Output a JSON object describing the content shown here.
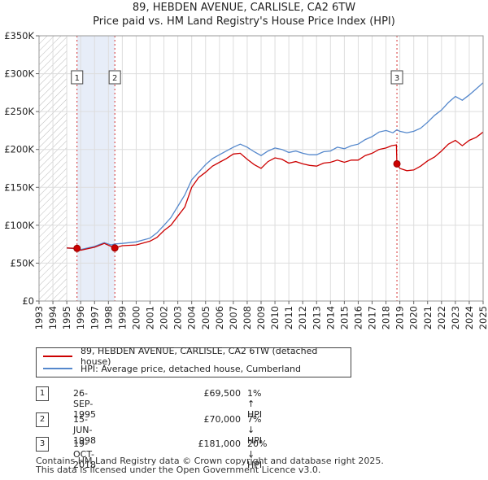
{
  "title_line1": "89, HEBDEN AVENUE, CARLISLE, CA2 6TW",
  "title_line2": "Price paid vs. HM Land Registry's House Price Index (HPI)",
  "chart_data": {
    "type": "line",
    "title": "89, HEBDEN AVENUE, CARLISLE, CA2 6TW — Price paid vs. HM Land Registry's House Price Index (HPI)",
    "xlim": [
      1993,
      2025
    ],
    "ylim": [
      0,
      350000
    ],
    "x_ticks": [
      "1993",
      "1994",
      "1995",
      "1996",
      "1997",
      "1998",
      "1999",
      "2000",
      "2001",
      "2002",
      "2003",
      "2004",
      "2005",
      "2006",
      "2007",
      "2008",
      "2009",
      "2010",
      "2011",
      "2012",
      "2013",
      "2014",
      "2015",
      "2016",
      "2017",
      "2018",
      "2019",
      "2020",
      "2021",
      "2022",
      "2023",
      "2024",
      "2025"
    ],
    "y_ticks": [
      {
        "value": 0,
        "label": "£0"
      },
      {
        "value": 50000,
        "label": "£50K"
      },
      {
        "value": 100000,
        "label": "£100K"
      },
      {
        "value": 150000,
        "label": "£150K"
      },
      {
        "value": 200000,
        "label": "£200K"
      },
      {
        "value": 250000,
        "label": "£250K"
      },
      {
        "value": 300000,
        "label": "£300K"
      },
      {
        "value": 350000,
        "label": "£350K"
      }
    ],
    "series": [
      {
        "name": "89, HEBDEN AVENUE, CARLISLE, CA2 6TW (detached house)",
        "color": "#cc0000",
        "points": [
          [
            1995.0,
            70000
          ],
          [
            1995.74,
            69500
          ],
          [
            1996.0,
            67000
          ],
          [
            1997.0,
            71000
          ],
          [
            1997.7,
            76000
          ],
          [
            1998.2,
            72000
          ],
          [
            1998.46,
            70000
          ],
          [
            1999.0,
            73000
          ],
          [
            2000.0,
            74000
          ],
          [
            2001.0,
            79000
          ],
          [
            2001.5,
            84000
          ],
          [
            2002.0,
            93000
          ],
          [
            2002.5,
            100000
          ],
          [
            2003.0,
            112000
          ],
          [
            2003.5,
            124000
          ],
          [
            2004.0,
            150000
          ],
          [
            2004.5,
            163000
          ],
          [
            2005.0,
            170000
          ],
          [
            2005.5,
            178000
          ],
          [
            2006.0,
            183000
          ],
          [
            2006.5,
            188000
          ],
          [
            2007.0,
            194000
          ],
          [
            2007.5,
            195000
          ],
          [
            2008.0,
            187000
          ],
          [
            2008.5,
            180000
          ],
          [
            2009.0,
            175000
          ],
          [
            2009.5,
            184000
          ],
          [
            2010.0,
            189000
          ],
          [
            2010.5,
            187000
          ],
          [
            2011.0,
            182000
          ],
          [
            2011.5,
            184000
          ],
          [
            2012.0,
            181000
          ],
          [
            2012.5,
            179000
          ],
          [
            2013.0,
            178000
          ],
          [
            2013.5,
            182000
          ],
          [
            2014.0,
            183000
          ],
          [
            2014.5,
            186000
          ],
          [
            2015.0,
            183000
          ],
          [
            2015.5,
            186000
          ],
          [
            2016.0,
            186000
          ],
          [
            2016.5,
            192000
          ],
          [
            2017.0,
            195000
          ],
          [
            2017.5,
            200000
          ],
          [
            2018.0,
            202000
          ],
          [
            2018.4,
            205000
          ],
          [
            2018.75,
            206000
          ],
          [
            2018.79,
            181000
          ],
          [
            2019.0,
            175000
          ],
          [
            2019.5,
            172000
          ],
          [
            2020.0,
            173000
          ],
          [
            2020.5,
            178000
          ],
          [
            2021.0,
            185000
          ],
          [
            2021.5,
            190000
          ],
          [
            2022.0,
            198000
          ],
          [
            2022.5,
            207000
          ],
          [
            2023.0,
            212000
          ],
          [
            2023.5,
            205000
          ],
          [
            2024.0,
            212000
          ],
          [
            2024.5,
            216000
          ],
          [
            2025.0,
            223000
          ]
        ]
      },
      {
        "name": "HPI: Average price, detached house, Cumberland",
        "color": "#5588cc",
        "points": [
          [
            1995.0,
            70000
          ],
          [
            1995.74,
            68800
          ],
          [
            1996.0,
            68000
          ],
          [
            1997.0,
            72000
          ],
          [
            1997.7,
            77000
          ],
          [
            1998.2,
            74000
          ],
          [
            1998.46,
            75300
          ],
          [
            1999.0,
            76000
          ],
          [
            2000.0,
            78000
          ],
          [
            2001.0,
            83000
          ],
          [
            2001.5,
            90000
          ],
          [
            2002.0,
            100000
          ],
          [
            2002.5,
            110000
          ],
          [
            2003.0,
            125000
          ],
          [
            2003.5,
            140000
          ],
          [
            2004.0,
            160000
          ],
          [
            2004.5,
            170000
          ],
          [
            2005.0,
            180000
          ],
          [
            2005.5,
            188000
          ],
          [
            2006.0,
            193000
          ],
          [
            2006.5,
            198000
          ],
          [
            2007.0,
            203000
          ],
          [
            2007.5,
            207000
          ],
          [
            2008.0,
            203000
          ],
          [
            2008.5,
            197000
          ],
          [
            2009.0,
            192000
          ],
          [
            2009.5,
            198000
          ],
          [
            2010.0,
            202000
          ],
          [
            2010.5,
            200000
          ],
          [
            2011.0,
            196000
          ],
          [
            2011.5,
            198000
          ],
          [
            2012.0,
            195000
          ],
          [
            2012.5,
            193000
          ],
          [
            2013.0,
            193000
          ],
          [
            2013.5,
            197000
          ],
          [
            2014.0,
            198000
          ],
          [
            2014.5,
            203000
          ],
          [
            2015.0,
            201000
          ],
          [
            2015.5,
            205000
          ],
          [
            2016.0,
            207000
          ],
          [
            2016.5,
            213000
          ],
          [
            2017.0,
            217000
          ],
          [
            2017.5,
            223000
          ],
          [
            2018.0,
            225000
          ],
          [
            2018.5,
            222000
          ],
          [
            2018.79,
            226000
          ],
          [
            2019.0,
            224000
          ],
          [
            2019.5,
            222000
          ],
          [
            2020.0,
            224000
          ],
          [
            2020.5,
            228000
          ],
          [
            2021.0,
            236000
          ],
          [
            2021.5,
            245000
          ],
          [
            2022.0,
            252000
          ],
          [
            2022.5,
            262000
          ],
          [
            2023.0,
            270000
          ],
          [
            2023.5,
            265000
          ],
          [
            2024.0,
            272000
          ],
          [
            2024.5,
            280000
          ],
          [
            2025.0,
            288000
          ]
        ]
      }
    ],
    "hatched_region": {
      "from": 1993,
      "to": 1995
    },
    "sale_markers": [
      {
        "label": "1",
        "x": 1995.74,
        "y": 69500
      },
      {
        "label": "2",
        "x": 1998.46,
        "y": 70000
      },
      {
        "label": "3",
        "x": 2018.79,
        "y": 181000
      }
    ],
    "shaded_period": {
      "from": 1995.74,
      "to": 1998.46
    }
  },
  "legend": {
    "red_label": "89, HEBDEN AVENUE, CARLISLE, CA2 6TW (detached house)",
    "blue_label": "HPI: Average price, detached house, Cumberland"
  },
  "transactions": [
    {
      "num": "1",
      "date": "26-SEP-1995",
      "price": "£69,500",
      "hpi": "1% ↑ HPI"
    },
    {
      "num": "2",
      "date": "15-JUN-1998",
      "price": "£70,000",
      "hpi": "7% ↓ HPI"
    },
    {
      "num": "3",
      "date": "19-OCT-2018",
      "price": "£181,000",
      "hpi": "20% ↓ HPI"
    }
  ],
  "footer_line1": "Contains HM Land Registry data © Crown copyright and database right 2025.",
  "footer_line2": "This data is licensed under the Open Government Licence v3.0."
}
